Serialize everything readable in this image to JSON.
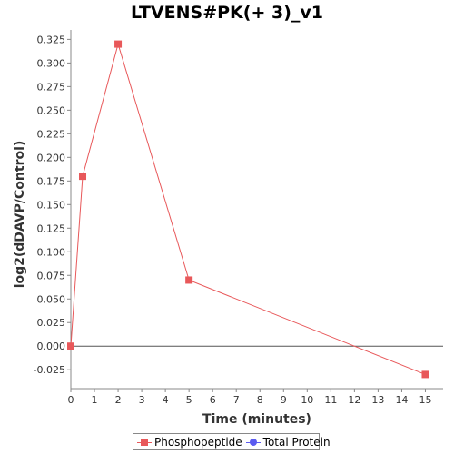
{
  "chart_data": {
    "type": "line",
    "title": "LTVENS#PK(+ 3)_v1",
    "xlabel": "Time (minutes)",
    "ylabel": "log2(dDAVP/Control)",
    "xlim": [
      0,
      15.75
    ],
    "ylim": [
      -0.045,
      0.335
    ],
    "x_ticks": [
      0,
      1,
      2,
      3,
      4,
      5,
      6,
      7,
      8,
      9,
      10,
      11,
      12,
      13,
      14,
      15
    ],
    "y_ticks": [
      -0.025,
      0.0,
      0.025,
      0.05,
      0.075,
      0.1,
      0.125,
      0.15,
      0.175,
      0.2,
      0.225,
      0.25,
      0.275,
      0.3,
      0.325
    ],
    "y_tick_labels": [
      "-0.025",
      "0.000",
      "0.025",
      "0.050",
      "0.075",
      "0.100",
      "0.125",
      "0.150",
      "0.175",
      "0.200",
      "0.225",
      "0.250",
      "0.275",
      "0.300",
      "0.325"
    ],
    "zero_line": 0,
    "grid": false,
    "legend_position": "bottom-center",
    "series": [
      {
        "name": "Phosphopeptide",
        "color": "#e8585a",
        "marker": "square",
        "x": [
          0,
          0.5,
          2,
          5,
          15
        ],
        "y": [
          0.0,
          0.18,
          0.32,
          0.07,
          -0.03
        ]
      },
      {
        "name": "Total Protein",
        "color": "#5b5bf0",
        "marker": "circle",
        "x": [],
        "y": []
      }
    ]
  }
}
